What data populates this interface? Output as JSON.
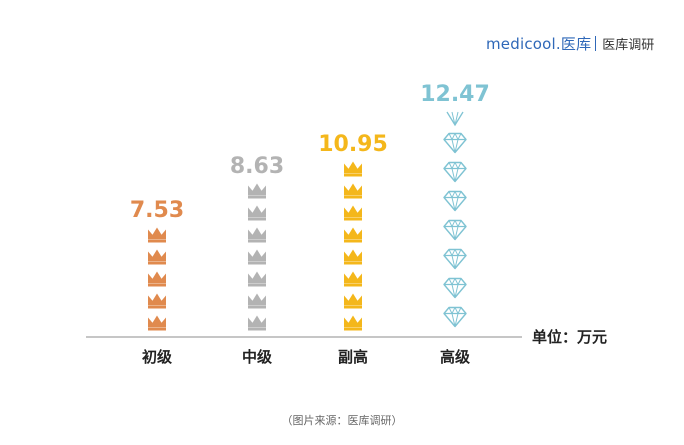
{
  "logo": {
    "brand": "medicool.医库",
    "sub": "医库调研"
  },
  "unit_label": "单位：万元",
  "source": "（图片来源：医库调研）",
  "colors": {
    "初级": "#e08a4e",
    "中级": "#b3b3b3",
    "副高": "#f4b71b",
    "高级": "#7fc3d3",
    "brand": "#2f68b8"
  },
  "icons": {
    "初级": "crown-icon",
    "中级": "crown-icon",
    "副高": "crown-icon",
    "高级": "diamond-icon"
  },
  "chart_data": {
    "type": "bar",
    "categories": [
      "初级",
      "中级",
      "副高",
      "高级"
    ],
    "values": [
      7.53,
      8.63,
      10.95,
      12.47
    ],
    "value_labels": [
      "7.53",
      "8.63",
      "10.95",
      "12.47"
    ],
    "title": "",
    "xlabel": "",
    "ylabel": "",
    "unit": "单位：万元",
    "grid": false,
    "legend": "none",
    "icon_counts": [
      5,
      7,
      8,
      8
    ]
  }
}
